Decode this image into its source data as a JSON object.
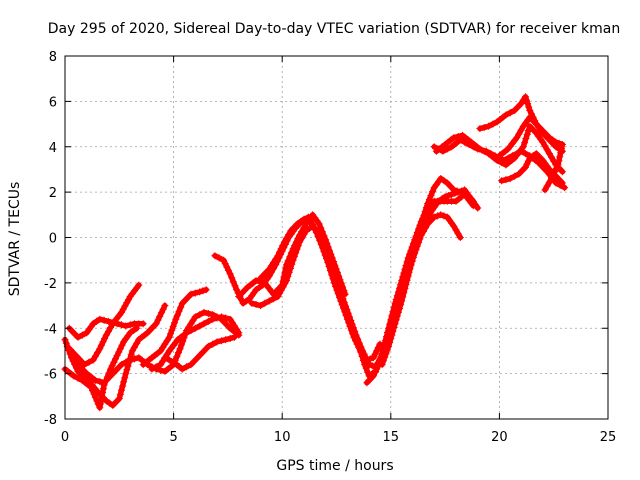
{
  "chart_data": {
    "type": "scatter",
    "title": "Day 295 of 2020, Sidereal Day-to-day VTEC variation (SDTVAR) for receiver kman",
    "xlabel": "GPS time / hours",
    "ylabel": "SDTVAR / TECUs",
    "xlim": [
      0,
      25
    ],
    "ylim": [
      -8,
      8
    ],
    "xticks": [
      "0",
      "5",
      "10",
      "15",
      "20",
      "25"
    ],
    "yticks": [
      "-8",
      "-6",
      "-4",
      "-2",
      "0",
      "2",
      "4",
      "6",
      "8"
    ],
    "grid": true,
    "marker": "plus",
    "color": "#ff0000",
    "series": [
      {
        "points": [
          [
            0.0,
            -4.5
          ],
          [
            0.3,
            -5.3
          ],
          [
            0.6,
            -5.9
          ],
          [
            1.0,
            -6.2
          ],
          [
            1.5,
            -6.8
          ],
          [
            1.9,
            -7.2
          ],
          [
            2.2,
            -7.4
          ],
          [
            2.5,
            -7.1
          ],
          [
            2.8,
            -6.0
          ],
          [
            3.1,
            -5.0
          ],
          [
            3.4,
            -4.5
          ],
          [
            3.8,
            -4.2
          ],
          [
            4.2,
            -3.8
          ],
          [
            4.6,
            -3.0
          ]
        ]
      },
      {
        "points": [
          [
            0.0,
            -5.8
          ],
          [
            0.4,
            -6.1
          ],
          [
            0.8,
            -6.3
          ],
          [
            1.2,
            -6.6
          ],
          [
            1.6,
            -7.5
          ],
          [
            1.8,
            -6.5
          ],
          [
            2.1,
            -5.8
          ],
          [
            2.4,
            -5.2
          ],
          [
            2.7,
            -4.6
          ],
          [
            3.0,
            -4.2
          ],
          [
            3.3,
            -4.0
          ]
        ]
      },
      {
        "points": [
          [
            0.1,
            -4.8
          ],
          [
            0.5,
            -5.2
          ],
          [
            0.9,
            -5.6
          ],
          [
            1.3,
            -5.4
          ],
          [
            1.6,
            -4.9
          ],
          [
            1.9,
            -4.3
          ],
          [
            2.2,
            -3.8
          ],
          [
            2.6,
            -3.3
          ],
          [
            3.0,
            -2.6
          ],
          [
            3.4,
            -2.1
          ]
        ]
      },
      {
        "points": [
          [
            0.2,
            -4.0
          ],
          [
            0.6,
            -4.4
          ],
          [
            1.0,
            -4.2
          ],
          [
            1.3,
            -3.8
          ],
          [
            1.6,
            -3.6
          ],
          [
            2.0,
            -3.7
          ],
          [
            2.4,
            -3.8
          ],
          [
            2.8,
            -3.9
          ],
          [
            3.2,
            -3.8
          ],
          [
            3.6,
            -3.8
          ]
        ]
      },
      {
        "points": [
          [
            0.3,
            -5.0
          ],
          [
            0.7,
            -5.7
          ],
          [
            1.0,
            -6.0
          ],
          [
            1.4,
            -6.3
          ],
          [
            1.8,
            -6.4
          ],
          [
            2.2,
            -6.0
          ],
          [
            2.6,
            -5.6
          ],
          [
            3.0,
            -5.4
          ],
          [
            3.4,
            -5.3
          ],
          [
            3.8,
            -5.6
          ],
          [
            4.2,
            -5.8
          ],
          [
            4.6,
            -5.9
          ],
          [
            5.0,
            -5.6
          ],
          [
            5.3,
            -4.9
          ],
          [
            5.6,
            -4.1
          ],
          [
            6.0,
            -3.5
          ],
          [
            6.4,
            -3.3
          ],
          [
            6.8,
            -3.4
          ],
          [
            7.2,
            -3.6
          ],
          [
            7.6,
            -4.0
          ],
          [
            8.0,
            -4.3
          ]
        ]
      },
      {
        "points": [
          [
            3.6,
            -5.6
          ],
          [
            4.0,
            -5.3
          ],
          [
            4.4,
            -5.0
          ],
          [
            4.8,
            -4.4
          ],
          [
            5.1,
            -3.6
          ],
          [
            5.4,
            -2.9
          ],
          [
            5.8,
            -2.5
          ],
          [
            6.2,
            -2.4
          ],
          [
            6.5,
            -2.3
          ]
        ]
      },
      {
        "points": [
          [
            4.0,
            -5.8
          ],
          [
            4.4,
            -5.6
          ],
          [
            4.8,
            -5.0
          ],
          [
            5.2,
            -4.5
          ],
          [
            5.6,
            -4.2
          ],
          [
            6.0,
            -4.0
          ],
          [
            6.4,
            -3.8
          ],
          [
            6.8,
            -3.6
          ],
          [
            7.2,
            -3.5
          ],
          [
            7.6,
            -3.6
          ],
          [
            8.0,
            -4.2
          ]
        ]
      },
      {
        "points": [
          [
            4.6,
            -5.3
          ],
          [
            5.0,
            -5.5
          ],
          [
            5.4,
            -5.8
          ],
          [
            5.8,
            -5.6
          ],
          [
            6.2,
            -5.2
          ],
          [
            6.6,
            -4.8
          ],
          [
            7.0,
            -4.6
          ],
          [
            7.4,
            -4.5
          ],
          [
            7.8,
            -4.4
          ]
        ]
      },
      {
        "points": [
          [
            6.9,
            -0.8
          ],
          [
            7.3,
            -1.0
          ],
          [
            7.6,
            -1.6
          ],
          [
            7.9,
            -2.3
          ],
          [
            8.2,
            -2.9
          ],
          [
            8.5,
            -2.7
          ],
          [
            8.8,
            -2.3
          ],
          [
            9.1,
            -2.1
          ],
          [
            9.4,
            -1.7
          ],
          [
            9.7,
            -1.2
          ],
          [
            10.0,
            -0.6
          ],
          [
            10.3,
            0.0
          ],
          [
            10.6,
            0.4
          ],
          [
            10.9,
            0.7
          ],
          [
            11.2,
            0.9
          ],
          [
            11.5,
            0.4
          ],
          [
            11.8,
            -0.3
          ],
          [
            12.1,
            -1.1
          ],
          [
            12.4,
            -2.0
          ],
          [
            12.7,
            -2.8
          ],
          [
            13.0,
            -3.6
          ],
          [
            13.3,
            -4.4
          ],
          [
            13.6,
            -5.0
          ],
          [
            13.9,
            -5.4
          ],
          [
            14.2,
            -5.3
          ],
          [
            14.5,
            -4.7
          ]
        ]
      },
      {
        "points": [
          [
            8.0,
            -2.6
          ],
          [
            8.4,
            -2.2
          ],
          [
            8.8,
            -1.9
          ],
          [
            9.2,
            -2.0
          ],
          [
            9.6,
            -2.5
          ],
          [
            10.0,
            -2.1
          ],
          [
            10.2,
            -1.2
          ],
          [
            10.5,
            -0.5
          ],
          [
            10.8,
            0.1
          ],
          [
            11.1,
            0.6
          ],
          [
            11.4,
            1.0
          ],
          [
            11.7,
            0.6
          ],
          [
            12.0,
            -0.1
          ],
          [
            12.3,
            -0.9
          ],
          [
            12.6,
            -1.7
          ],
          [
            12.9,
            -2.5
          ]
        ]
      },
      {
        "points": [
          [
            8.6,
            -2.9
          ],
          [
            9.0,
            -3.0
          ],
          [
            9.4,
            -2.8
          ],
          [
            9.8,
            -2.6
          ],
          [
            10.2,
            -1.9
          ],
          [
            10.5,
            -1.0
          ],
          [
            10.8,
            -0.2
          ],
          [
            11.1,
            0.3
          ],
          [
            11.4,
            0.5
          ],
          [
            11.7,
            0.1
          ],
          [
            12.0,
            -0.7
          ],
          [
            12.3,
            -1.5
          ],
          [
            12.6,
            -2.3
          ],
          [
            12.9,
            -3.1
          ],
          [
            13.2,
            -3.9
          ],
          [
            13.5,
            -4.7
          ],
          [
            13.8,
            -5.6
          ],
          [
            14.0,
            -6.1
          ],
          [
            14.3,
            -5.9
          ],
          [
            14.6,
            -5.1
          ],
          [
            14.9,
            -4.0
          ],
          [
            15.2,
            -2.9
          ],
          [
            15.5,
            -1.9
          ],
          [
            15.8,
            -0.9
          ],
          [
            16.1,
            -0.1
          ],
          [
            16.4,
            0.7
          ],
          [
            16.7,
            1.3
          ],
          [
            17.0,
            1.6
          ],
          [
            17.3,
            1.6
          ],
          [
            17.6,
            1.6
          ],
          [
            18.0,
            1.6
          ],
          [
            18.4,
            1.9
          ],
          [
            18.8,
            1.4
          ]
        ]
      },
      {
        "points": [
          [
            9.0,
            -1.8
          ],
          [
            9.4,
            -1.4
          ],
          [
            9.8,
            -0.8
          ],
          [
            10.1,
            -0.2
          ],
          [
            10.4,
            0.3
          ],
          [
            10.7,
            0.6
          ],
          [
            11.0,
            0.8
          ],
          [
            11.3,
            0.7
          ],
          [
            11.6,
            0.2
          ],
          [
            11.9,
            -0.5
          ],
          [
            12.2,
            -1.2
          ],
          [
            12.5,
            -2.0
          ],
          [
            12.8,
            -2.7
          ],
          [
            13.1,
            -3.5
          ],
          [
            13.4,
            -4.3
          ],
          [
            13.7,
            -5.0
          ],
          [
            14.0,
            -5.6
          ],
          [
            14.3,
            -5.7
          ],
          [
            14.6,
            -5.2
          ],
          [
            14.9,
            -4.4
          ],
          [
            15.2,
            -3.4
          ],
          [
            15.5,
            -2.5
          ],
          [
            15.8,
            -1.6
          ],
          [
            16.1,
            -0.7
          ],
          [
            16.4,
            0.1
          ],
          [
            16.7,
            0.6
          ],
          [
            17.0,
            0.9
          ],
          [
            17.3,
            1.0
          ],
          [
            17.6,
            0.9
          ],
          [
            17.9,
            0.5
          ],
          [
            18.2,
            0.0
          ]
        ]
      },
      {
        "points": [
          [
            13.9,
            -6.4
          ],
          [
            14.2,
            -6.1
          ],
          [
            14.5,
            -5.5
          ],
          [
            14.8,
            -4.6
          ],
          [
            15.1,
            -3.6
          ],
          [
            15.4,
            -2.6
          ],
          [
            15.7,
            -1.7
          ],
          [
            16.0,
            -0.8
          ],
          [
            16.3,
            0.0
          ],
          [
            16.6,
            0.7
          ],
          [
            16.9,
            1.2
          ],
          [
            17.2,
            1.6
          ],
          [
            17.5,
            1.8
          ],
          [
            17.8,
            1.9
          ],
          [
            18.1,
            2.0
          ],
          [
            18.4,
            2.1
          ],
          [
            18.7,
            1.7
          ],
          [
            19.0,
            1.3
          ]
        ]
      },
      {
        "points": [
          [
            14.6,
            -5.6
          ],
          [
            14.9,
            -4.8
          ],
          [
            15.2,
            -3.8
          ],
          [
            15.5,
            -2.8
          ],
          [
            15.8,
            -1.7
          ],
          [
            16.1,
            -0.5
          ],
          [
            16.4,
            0.6
          ],
          [
            16.7,
            1.5
          ],
          [
            17.0,
            2.2
          ],
          [
            17.3,
            2.6
          ],
          [
            17.6,
            2.4
          ],
          [
            17.9,
            2.1
          ],
          [
            18.2,
            2.0
          ],
          [
            18.5,
            1.9
          ],
          [
            18.8,
            1.6
          ]
        ]
      },
      {
        "points": [
          [
            17.0,
            4.0
          ],
          [
            17.4,
            3.8
          ],
          [
            17.8,
            4.0
          ],
          [
            18.2,
            4.3
          ],
          [
            18.6,
            4.1
          ],
          [
            19.0,
            3.9
          ],
          [
            19.4,
            3.8
          ],
          [
            19.8,
            3.6
          ],
          [
            20.2,
            3.4
          ],
          [
            20.6,
            3.6
          ],
          [
            21.0,
            3.8
          ],
          [
            21.4,
            3.6
          ],
          [
            21.8,
            3.3
          ],
          [
            22.2,
            2.9
          ],
          [
            22.6,
            2.4
          ],
          [
            23.0,
            2.2
          ]
        ]
      },
      {
        "points": [
          [
            17.1,
            3.8
          ],
          [
            17.5,
            4.1
          ],
          [
            17.9,
            4.4
          ],
          [
            18.3,
            4.5
          ],
          [
            18.7,
            4.2
          ],
          [
            19.1,
            3.9
          ],
          [
            19.5,
            3.7
          ],
          [
            19.9,
            3.4
          ],
          [
            20.3,
            3.2
          ],
          [
            20.7,
            3.5
          ],
          [
            21.1,
            4.0
          ],
          [
            21.4,
            4.9
          ],
          [
            21.7,
            4.6
          ],
          [
            22.0,
            4.2
          ],
          [
            22.3,
            3.7
          ],
          [
            22.6,
            3.2
          ],
          [
            22.9,
            2.9
          ]
        ]
      },
      {
        "points": [
          [
            19.1,
            4.8
          ],
          [
            19.5,
            4.9
          ],
          [
            19.9,
            5.1
          ],
          [
            20.3,
            5.4
          ],
          [
            20.7,
            5.6
          ],
          [
            21.0,
            5.9
          ],
          [
            21.2,
            6.2
          ],
          [
            21.4,
            5.6
          ],
          [
            21.7,
            5.0
          ],
          [
            22.0,
            4.6
          ],
          [
            22.3,
            4.3
          ],
          [
            22.6,
            4.0
          ],
          [
            22.9,
            3.8
          ]
        ]
      },
      {
        "points": [
          [
            20.1,
            2.5
          ],
          [
            20.5,
            2.6
          ],
          [
            20.9,
            2.8
          ],
          [
            21.2,
            3.1
          ],
          [
            21.4,
            3.5
          ],
          [
            21.7,
            3.7
          ],
          [
            22.0,
            3.4
          ],
          [
            22.3,
            3.0
          ],
          [
            22.6,
            2.7
          ],
          [
            22.9,
            2.4
          ]
        ]
      },
      {
        "points": [
          [
            20.0,
            3.6
          ],
          [
            20.4,
            3.9
          ],
          [
            20.8,
            4.4
          ],
          [
            21.1,
            4.9
          ],
          [
            21.4,
            5.3
          ],
          [
            21.7,
            5.0
          ],
          [
            22.0,
            4.7
          ],
          [
            22.3,
            4.4
          ],
          [
            22.6,
            4.2
          ],
          [
            22.9,
            4.1
          ],
          [
            22.7,
            3.2
          ],
          [
            22.4,
            2.6
          ],
          [
            22.1,
            2.1
          ]
        ]
      }
    ]
  }
}
